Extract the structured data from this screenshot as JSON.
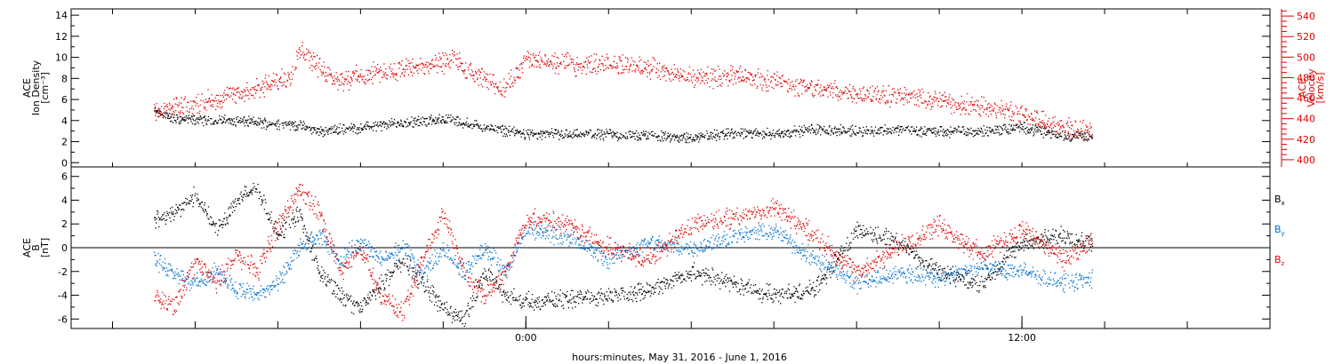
{
  "chart_data": [
    {
      "type": "scatter",
      "panel": "top",
      "y_left": {
        "label_lines": [
          "ACE",
          "Ion Density",
          "[cm⁻³]"
        ],
        "range": [
          -0.4,
          14.6
        ],
        "ticks": [
          0,
          2,
          4,
          6,
          8,
          10,
          12,
          14
        ]
      },
      "y_right": {
        "label_lines": [
          "ACE",
          "Velocity",
          "[km/s]"
        ],
        "range": [
          393,
          547
        ],
        "ticks": [
          400,
          420,
          440,
          460,
          480,
          500,
          520,
          540
        ],
        "color": "#e00000"
      },
      "series": [
        {
          "axis": "left",
          "color": "#000000",
          "keypoints": [
            [
              -9,
              5.0
            ],
            [
              -8.5,
              4.2
            ],
            [
              -7,
              4.0
            ],
            [
              -5.5,
              3.6
            ],
            [
              -5,
              3.0
            ],
            [
              -4,
              3.4
            ],
            [
              -3,
              3.8
            ],
            [
              -2,
              4.2
            ],
            [
              -1,
              3.4
            ],
            [
              0,
              2.8
            ],
            [
              1,
              2.7
            ],
            [
              2,
              2.7
            ],
            [
              3,
              2.6
            ],
            [
              4,
              2.4
            ],
            [
              5,
              2.8
            ],
            [
              6,
              2.8
            ],
            [
              7,
              3.2
            ],
            [
              8,
              3.0
            ],
            [
              9,
              3.2
            ],
            [
              10,
              3.0
            ],
            [
              11,
              3.0
            ],
            [
              12,
              3.4
            ],
            [
              13,
              2.6
            ],
            [
              13.7,
              2.6
            ]
          ],
          "spread": 0.6
        },
        {
          "axis": "right",
          "color": "#e00000",
          "keypoints": [
            [
              -9,
              445
            ],
            [
              -8.5,
              450
            ],
            [
              -7.5,
              460
            ],
            [
              -6.5,
              470
            ],
            [
              -5.7,
              480
            ],
            [
              -5.5,
              510
            ],
            [
              -5,
              490
            ],
            [
              -4.5,
              478
            ],
            [
              -3.8,
              484
            ],
            [
              -3,
              488
            ],
            [
              -2.2,
              492
            ],
            [
              -1.7,
              500
            ],
            [
              -1.5,
              487
            ],
            [
              -0.5,
              470
            ],
            [
              0,
              498
            ],
            [
              1,
              493
            ],
            [
              2,
              495
            ],
            [
              3,
              490
            ],
            [
              4,
              480
            ],
            [
              5,
              483
            ],
            [
              6,
              476
            ],
            [
              7,
              470
            ],
            [
              8,
              466
            ],
            [
              9,
              463
            ],
            [
              10,
              458
            ],
            [
              11,
              452
            ],
            [
              12,
              444
            ],
            [
              13,
              433
            ],
            [
              13.7,
              428
            ]
          ],
          "spread": 12
        }
      ]
    },
    {
      "type": "scatter",
      "panel": "bottom",
      "y_left": {
        "label_lines": [
          "ACE",
          "B",
          "[nT]"
        ],
        "range": [
          -6.8,
          6.8
        ],
        "ticks": [
          -6,
          -4,
          -2,
          0,
          2,
          4,
          6
        ]
      },
      "legend": [
        {
          "label": "B",
          "sub": "x",
          "color": "#000000"
        },
        {
          "label": "B",
          "sub": "y",
          "color": "#0070d0"
        },
        {
          "label": "B",
          "sub": "z",
          "color": "#e00000"
        }
      ],
      "series": [
        {
          "name": "Bx",
          "color": "#000000",
          "keypoints": [
            [
              -9,
              2.5
            ],
            [
              -8.5,
              3.0
            ],
            [
              -8,
              4.5
            ],
            [
              -7.5,
              1.5
            ],
            [
              -7,
              4.0
            ],
            [
              -6.5,
              5.0
            ],
            [
              -6,
              1.0
            ],
            [
              -5.5,
              3.0
            ],
            [
              -5,
              -2.0
            ],
            [
              -4.5,
              -4.0
            ],
            [
              -4,
              -5.0
            ],
            [
              -3.5,
              -3.0
            ],
            [
              -3,
              -1.0
            ],
            [
              -2.5,
              -3.0
            ],
            [
              -2,
              -5.0
            ],
            [
              -1.5,
              -6.0
            ],
            [
              -1,
              -2.0
            ],
            [
              -0.5,
              -4.0
            ],
            [
              0,
              -4.5
            ],
            [
              1,
              -4.3
            ],
            [
              2,
              -4.0
            ],
            [
              3,
              -3.5
            ],
            [
              4,
              -2.0
            ],
            [
              5,
              -3.0
            ],
            [
              6,
              -4.0
            ],
            [
              7,
              -3.5
            ],
            [
              8,
              1.5
            ],
            [
              9,
              0.5
            ],
            [
              10,
              -2.0
            ],
            [
              11,
              -3.0
            ],
            [
              12,
              0.5
            ],
            [
              13,
              1.0
            ],
            [
              13.7,
              0.5
            ]
          ],
          "spread": 0.9
        },
        {
          "name": "By",
          "color": "#0070d0",
          "keypoints": [
            [
              -9,
              -1.0
            ],
            [
              -8.5,
              -2.0
            ],
            [
              -8,
              -3.0
            ],
            [
              -7.5,
              -2.0
            ],
            [
              -7,
              -3.5
            ],
            [
              -6.5,
              -4.0
            ],
            [
              -6,
              -3.0
            ],
            [
              -5.5,
              0.0
            ],
            [
              -5,
              1.0
            ],
            [
              -4.5,
              -1.0
            ],
            [
              -4,
              0.5
            ],
            [
              -3.5,
              -1.0
            ],
            [
              -3,
              0.0
            ],
            [
              -2.5,
              -2.0
            ],
            [
              -2,
              0.0
            ],
            [
              -1.5,
              -2.0
            ],
            [
              -1,
              0.0
            ],
            [
              -0.5,
              -2.0
            ],
            [
              0,
              1.5
            ],
            [
              1,
              1.0
            ],
            [
              2,
              -1.0
            ],
            [
              3,
              0.5
            ],
            [
              4,
              0.0
            ],
            [
              5,
              1.0
            ],
            [
              6,
              1.5
            ],
            [
              7,
              -1.0
            ],
            [
              8,
              -3.0
            ],
            [
              9,
              -2.0
            ],
            [
              10,
              -2.5
            ],
            [
              11,
              -1.5
            ],
            [
              12,
              -2.0
            ],
            [
              13,
              -3.0
            ],
            [
              13.7,
              -2.5
            ]
          ],
          "spread": 0.9
        },
        {
          "name": "Bz",
          "color": "#e00000",
          "keypoints": [
            [
              -9,
              -4.0
            ],
            [
              -8.5,
              -5.0
            ],
            [
              -8,
              -1.0
            ],
            [
              -7.5,
              -3.0
            ],
            [
              -7,
              -0.5
            ],
            [
              -6.5,
              -2.0
            ],
            [
              -6,
              2.0
            ],
            [
              -5.5,
              5.0
            ],
            [
              -5,
              3.0
            ],
            [
              -4.5,
              -2.0
            ],
            [
              -4,
              0.0
            ],
            [
              -3.5,
              -4.0
            ],
            [
              -3,
              -5.5
            ],
            [
              -2.5,
              -1.0
            ],
            [
              -2,
              3.0
            ],
            [
              -1.5,
              -2.0
            ],
            [
              -1,
              -4.0
            ],
            [
              -0.5,
              -2.0
            ],
            [
              0,
              2.5
            ],
            [
              1,
              2.0
            ],
            [
              2,
              0.0
            ],
            [
              3,
              -1.0
            ],
            [
              4,
              2.0
            ],
            [
              5,
              2.5
            ],
            [
              6,
              3.5
            ],
            [
              7,
              1.0
            ],
            [
              8,
              -2.0
            ],
            [
              9,
              0.0
            ],
            [
              10,
              2.0
            ],
            [
              11,
              -0.5
            ],
            [
              12,
              1.5
            ],
            [
              13,
              -1.0
            ],
            [
              13.7,
              0.5
            ]
          ],
          "spread": 1.0
        }
      ]
    }
  ],
  "x_axis": {
    "label": "hours:minutes, May 31, 2016 - June  1, 2016",
    "range": [
      -11,
      18
    ],
    "labeled_ticks": [
      {
        "value": 0,
        "label": "0:00"
      },
      {
        "value": 12,
        "label": "12:00"
      }
    ],
    "tick_step": 2
  },
  "colors": {
    "frame": "#000000",
    "density": "#000000",
    "velocity": "#e00000",
    "bx": "#000000",
    "by": "#0070d0",
    "bz": "#e00000"
  }
}
